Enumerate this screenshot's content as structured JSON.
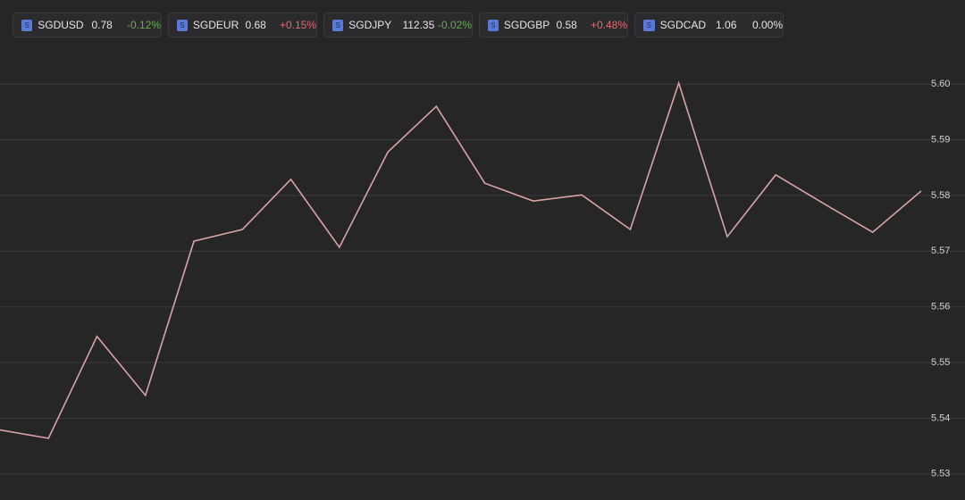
{
  "tickers": [
    {
      "icon": "S",
      "symbol": "SGDUSD",
      "price": 0.78,
      "change": "-0.12%",
      "color": "#6aa84f"
    },
    {
      "icon": "S",
      "symbol": "SGDEUR",
      "price": 0.68,
      "change": "+0.15%",
      "color": "#e06c75"
    },
    {
      "icon": "S",
      "symbol": "SGDJPY",
      "price": 112.35,
      "change": "-0.02%",
      "color": "#6aa84f"
    },
    {
      "icon": "S",
      "symbol": "SGDGBP",
      "price": 0.58,
      "change": "+0.48%",
      "color": "#e06c75"
    },
    {
      "icon": "S",
      "symbol": "SGDCAD",
      "price": 1.06,
      "change": "0.00%",
      "color": "#e6e6e6"
    }
  ],
  "chart_data": {
    "type": "line",
    "categories": [
      null,
      null,
      null,
      null,
      null,
      null,
      null,
      null,
      null,
      null,
      null,
      null,
      null,
      null,
      null,
      null,
      null,
      null,
      null,
      null
    ],
    "series": [
      {
        "color": "#d9a3a3",
        "values": [
          5.5379,
          5.5364,
          5.5547,
          5.5441,
          5.5718,
          5.5739,
          5.5829,
          5.5707,
          5.5878,
          5.596,
          5.5822,
          5.579,
          5.5801,
          5.5739,
          5.6002,
          5.5726,
          5.5837,
          5.5785,
          5.5734,
          5.5808
        ]
      }
    ],
    "ylim": [
      5.525,
      5.605
    ],
    "yticks": [
      5.53,
      5.54,
      5.55,
      5.56,
      5.57,
      5.58,
      5.59,
      {
        "value": 5.6,
        "label": "5.60"
      }
    ],
    "grid": true
  }
}
